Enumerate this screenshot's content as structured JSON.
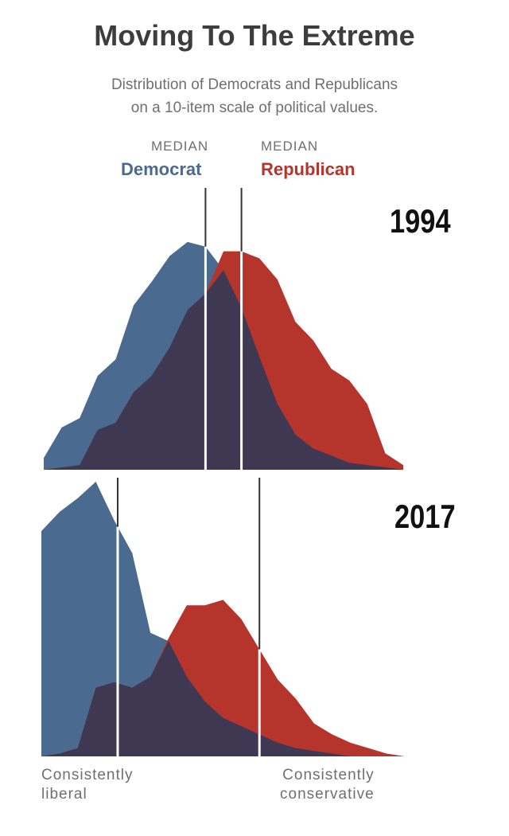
{
  "header": {
    "title": "Moving To The Extreme",
    "subtitle_lines": [
      "Distribution of Democrats and Republicans",
      "on a 10-item scale of political values."
    ]
  },
  "legend": {
    "median_label_dem": "MEDIAN",
    "median_label_rep": "MEDIAN",
    "dem_label": "Democrat",
    "rep_label": "Republican"
  },
  "axis_notes": {
    "left_line1": "Consistently",
    "left_line2": "liberal",
    "right_line1": "Consistently",
    "right_line2": "conservative"
  },
  "colors": {
    "democrat": "#4b6a8f",
    "republican": "#b5342b",
    "overlap": "#3e3852",
    "median_line": "#ffffff"
  },
  "chart_data": [
    {
      "type": "area",
      "title": "1994",
      "x": [
        -10,
        -9,
        -8,
        -7,
        -6,
        -5,
        -4,
        -3,
        -2,
        -1,
        0,
        1,
        2,
        3,
        4,
        5,
        6,
        7,
        8,
        9,
        10
      ],
      "xlim": [
        -10,
        10
      ],
      "ylim": [
        0,
        100
      ],
      "series": [
        {
          "name": "Democrat",
          "values": [
            5,
            18,
            22,
            40,
            47,
            70,
            80,
            91,
            97,
            95,
            85,
            69,
            48,
            28,
            15,
            9,
            6,
            3,
            2,
            1,
            0
          ],
          "median": -1.0
        },
        {
          "name": "Republican",
          "values": [
            0,
            1,
            2,
            17,
            20,
            33,
            40,
            52,
            68,
            75,
            93,
            93,
            90,
            81,
            63,
            55,
            43,
            38,
            28,
            7,
            2
          ],
          "median": 1.0
        }
      ]
    },
    {
      "type": "area",
      "title": "2017",
      "x": [
        -10,
        -9,
        -8,
        -7,
        -6,
        -5,
        -4,
        -3,
        -2,
        -1,
        0,
        1,
        2,
        3,
        4,
        5,
        6,
        7,
        8,
        9,
        10
      ],
      "xlim": [
        -10,
        10
      ],
      "ylim": [
        0,
        100
      ],
      "series": [
        {
          "name": "Democrat",
          "values": [
            82,
            89,
            94,
            100,
            86,
            74,
            45,
            42,
            29,
            20,
            14,
            11,
            8,
            5,
            3,
            2,
            1,
            0,
            0,
            0,
            0
          ],
          "median": -5.8
        },
        {
          "name": "Republican",
          "values": [
            0,
            1,
            3,
            25,
            27,
            25,
            29,
            43,
            55,
            55,
            57,
            50,
            39,
            28,
            21,
            12,
            8,
            5,
            3,
            1,
            0
          ],
          "median": 2.0
        }
      ]
    }
  ]
}
